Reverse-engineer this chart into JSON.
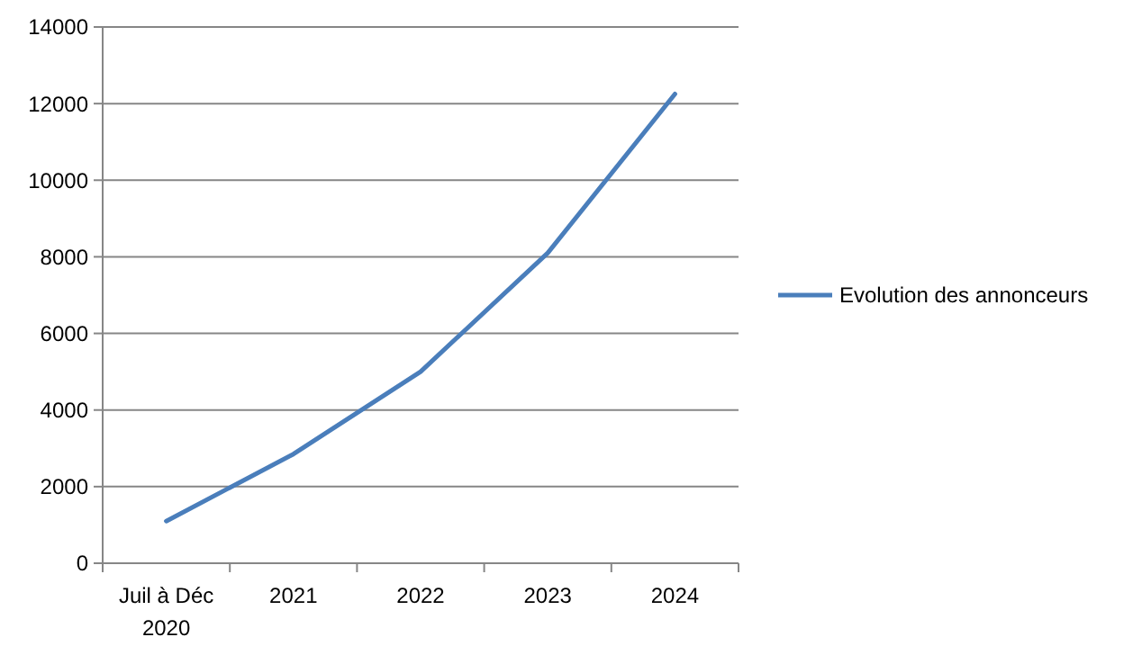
{
  "chart_data": {
    "type": "line",
    "categories": [
      "Juil à Déc 2020",
      "2021",
      "2022",
      "2023",
      "2024"
    ],
    "series": [
      {
        "name": "Evolution des annonceurs",
        "color": "#4a7ebb",
        "values": [
          1100,
          2850,
          5000,
          8100,
          12250
        ]
      }
    ],
    "ylim": [
      0,
      14000
    ],
    "yticks": [
      0,
      2000,
      4000,
      6000,
      8000,
      10000,
      12000,
      14000
    ],
    "grid": "y",
    "legend": "right",
    "marker": "none",
    "line_style": "solid"
  }
}
